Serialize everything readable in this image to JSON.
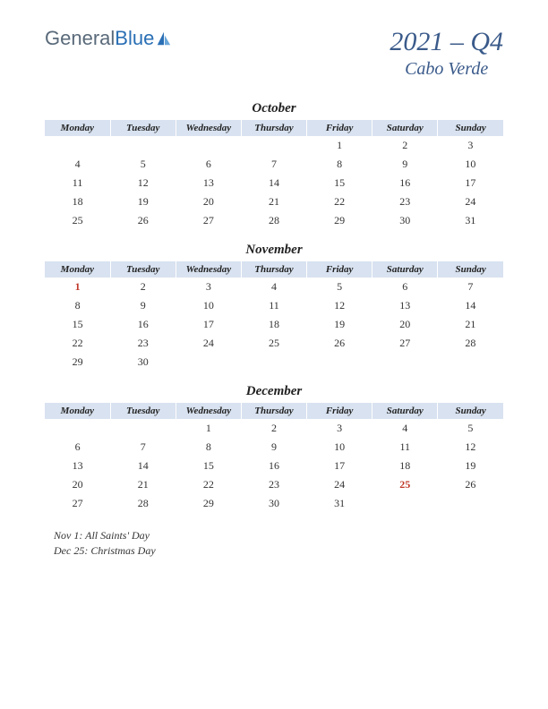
{
  "logo": {
    "text1": "General",
    "text2": "Blue"
  },
  "title": {
    "main": "2021 – Q4",
    "sub": "Cabo Verde"
  },
  "colors": {
    "header_bg": "#d8e2f0",
    "title_color": "#3a5a8a",
    "holiday_color": "#c0392b",
    "logo_blue": "#2a6fb5"
  },
  "day_headers": [
    "Monday",
    "Tuesday",
    "Wednesday",
    "Thursday",
    "Friday",
    "Saturday",
    "Sunday"
  ],
  "months": [
    {
      "name": "October",
      "weeks": [
        [
          "",
          "",
          "",
          "",
          "1",
          "2",
          "3"
        ],
        [
          "4",
          "5",
          "6",
          "7",
          "8",
          "9",
          "10"
        ],
        [
          "11",
          "12",
          "13",
          "14",
          "15",
          "16",
          "17"
        ],
        [
          "18",
          "19",
          "20",
          "21",
          "22",
          "23",
          "24"
        ],
        [
          "25",
          "26",
          "27",
          "28",
          "29",
          "30",
          "31"
        ]
      ],
      "holidays": []
    },
    {
      "name": "November",
      "weeks": [
        [
          "1",
          "2",
          "3",
          "4",
          "5",
          "6",
          "7"
        ],
        [
          "8",
          "9",
          "10",
          "11",
          "12",
          "13",
          "14"
        ],
        [
          "15",
          "16",
          "17",
          "18",
          "19",
          "20",
          "21"
        ],
        [
          "22",
          "23",
          "24",
          "25",
          "26",
          "27",
          "28"
        ],
        [
          "29",
          "30",
          "",
          "",
          "",
          "",
          ""
        ]
      ],
      "holidays": [
        "1"
      ]
    },
    {
      "name": "December",
      "weeks": [
        [
          "",
          "",
          "1",
          "2",
          "3",
          "4",
          "5"
        ],
        [
          "6",
          "7",
          "8",
          "9",
          "10",
          "11",
          "12"
        ],
        [
          "13",
          "14",
          "15",
          "16",
          "17",
          "18",
          "19"
        ],
        [
          "20",
          "21",
          "22",
          "23",
          "24",
          "25",
          "26"
        ],
        [
          "27",
          "28",
          "29",
          "30",
          "31",
          "",
          ""
        ]
      ],
      "holidays": [
        "25"
      ]
    }
  ],
  "notes": [
    "Nov 1: All Saints' Day",
    "Dec 25: Christmas Day"
  ]
}
